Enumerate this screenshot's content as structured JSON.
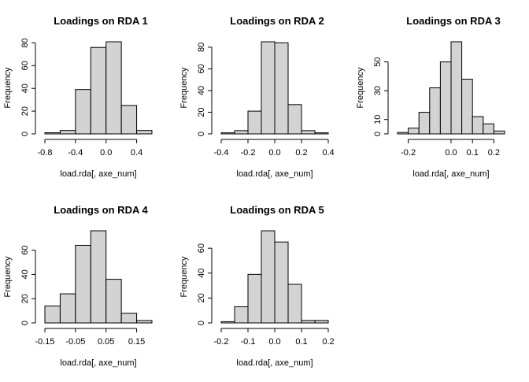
{
  "chart_data": [
    {
      "type": "histogram",
      "title": "Loadings on RDA 1",
      "x_label": "load.rda[, axe_num]",
      "y_label": "Frequency",
      "color": "#d3d3d3",
      "bins": [
        -0.8,
        -0.6,
        -0.4,
        -0.2,
        0.0,
        0.2,
        0.4,
        0.6
      ],
      "values": [
        1,
        3,
        39,
        76,
        81,
        25,
        3
      ],
      "xlim": [
        -0.8,
        0.6
      ],
      "xticks": [
        -0.8,
        -0.4,
        {
          "value": 0,
          "label": "0.0"
        },
        0.4
      ],
      "ylim": [
        0,
        81
      ],
      "yticks": [
        0,
        20,
        40,
        60,
        80
      ]
    },
    {
      "type": "histogram",
      "title": "Loadings on RDA 2",
      "x_label": "load.rda[, axe_num]",
      "y_label": "Frequency",
      "color": "#d3d3d3",
      "bins": [
        -0.4,
        -0.3,
        -0.2,
        -0.1,
        0.0,
        0.1,
        0.2,
        0.3,
        0.4
      ],
      "values": [
        1,
        3,
        21,
        85,
        84,
        27,
        3,
        1
      ],
      "xlim": [
        -0.4,
        0.4
      ],
      "xticks": [
        -0.4,
        -0.2,
        {
          "value": 0,
          "label": "0.0"
        },
        0.2,
        0.4
      ],
      "ylim": [
        0,
        85
      ],
      "yticks": [
        0,
        20,
        40,
        60,
        80
      ]
    },
    {
      "type": "histogram",
      "title": "Loadings on RDA 3",
      "x_label": "load.rda[, axe_num]",
      "y_label": "Frequency",
      "color": "#d3d3d3",
      "bins": [
        -0.25,
        -0.2,
        -0.15,
        -0.1,
        -0.05,
        0.0,
        0.05,
        0.1,
        0.15,
        0.2,
        0.25
      ],
      "values": [
        1,
        4,
        15,
        32,
        50,
        64,
        38,
        12,
        7,
        2
      ],
      "xlim": [
        -0.25,
        0.25
      ],
      "xticks": [
        -0.2,
        {
          "value": 0,
          "label": "0.0"
        },
        0.1,
        0.2
      ],
      "ylim": [
        0,
        64
      ],
      "yticks": [
        0,
        10,
        30,
        50
      ]
    },
    {
      "type": "histogram",
      "title": "Loadings on RDA 4",
      "x_label": "load.rda[, axe_num]",
      "y_label": "Frequency",
      "color": "#d3d3d3",
      "bins": [
        -0.15,
        -0.1,
        -0.05,
        0.0,
        0.05,
        0.1,
        0.15,
        0.2
      ],
      "values": [
        14,
        24,
        64,
        76,
        36,
        8,
        2
      ],
      "xlim": [
        -0.15,
        0.2
      ],
      "xticks": [
        -0.15,
        -0.05,
        0.05,
        0.15
      ],
      "ylim": [
        0,
        76
      ],
      "yticks": [
        0,
        20,
        40,
        60
      ]
    },
    {
      "type": "histogram",
      "title": "Loadings on RDA 5",
      "x_label": "load.rda[, axe_num]",
      "y_label": "Frequency",
      "color": "#d3d3d3",
      "bins": [
        -0.2,
        -0.15,
        -0.1,
        -0.05,
        0.0,
        0.05,
        0.1,
        0.15,
        0.2
      ],
      "values": [
        1,
        13,
        39,
        74,
        65,
        31,
        2,
        2
      ],
      "xlim": [
        -0.2,
        0.2
      ],
      "xticks": [
        -0.2,
        -0.1,
        {
          "value": 0,
          "label": "0.0"
        },
        0.1,
        0.2
      ],
      "ylim": [
        0,
        74
      ],
      "yticks": [
        0,
        20,
        40,
        60
      ]
    }
  ]
}
